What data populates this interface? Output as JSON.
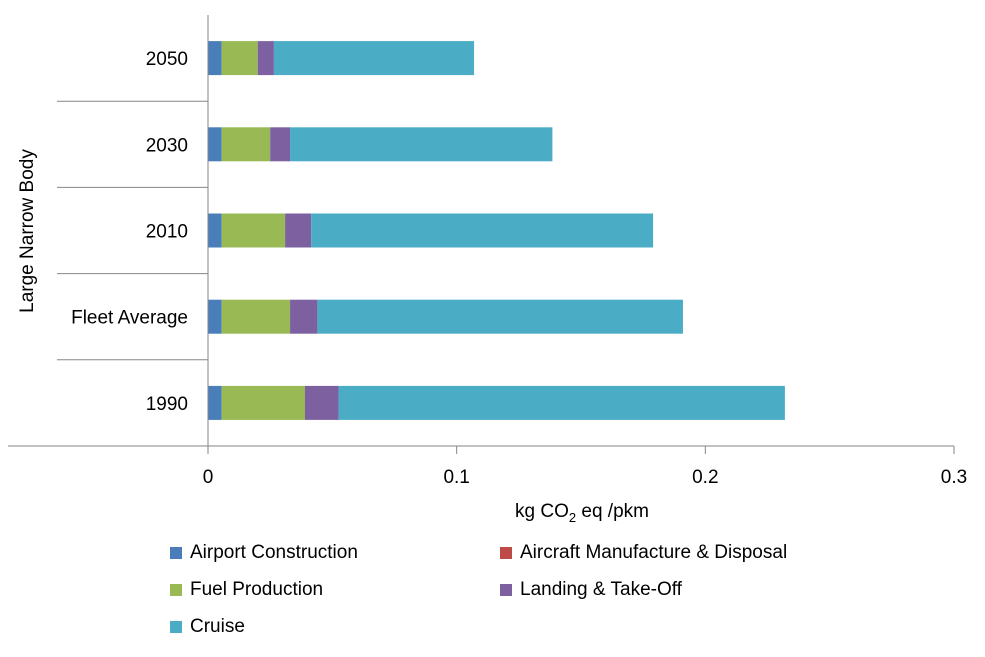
{
  "chart_data": {
    "type": "bar",
    "orientation": "horizontal",
    "stacked": true,
    "title": "",
    "xlabel_parts": {
      "pre": "kg CO",
      "sub": "2",
      "post": " eq /pkm"
    },
    "ylabel": "Large Narrow Body",
    "categories": [
      "2050",
      "2030",
      "2010",
      "Fleet Average",
      "1990"
    ],
    "xlim": [
      0,
      0.3
    ],
    "xticks": [
      0,
      0.1,
      0.2,
      0.3
    ],
    "xtick_labels": [
      "0",
      "0.1",
      "0.2",
      "0.3"
    ],
    "grid": false,
    "legend_position": "bottom",
    "series": [
      {
        "name": "Airport Construction",
        "color": "#4a7ebb",
        "values": [
          0.0055,
          0.0055,
          0.0055,
          0.0055,
          0.0055
        ]
      },
      {
        "name": "Aircraft Manufacture & Disposal",
        "color": "#be4b48",
        "values": [
          0,
          0,
          0,
          0,
          0
        ]
      },
      {
        "name": "Fuel Production",
        "color": "#98b954",
        "values": [
          0.0145,
          0.0195,
          0.0255,
          0.0275,
          0.0335
        ]
      },
      {
        "name": "Landing & Take-Off",
        "color": "#7d60a0",
        "values": [
          0.0065,
          0.008,
          0.0105,
          0.011,
          0.0135
        ]
      },
      {
        "name": "Cruise",
        "color": "#4bacc6",
        "values": [
          0.0805,
          0.1055,
          0.1375,
          0.147,
          0.1795
        ]
      }
    ]
  }
}
